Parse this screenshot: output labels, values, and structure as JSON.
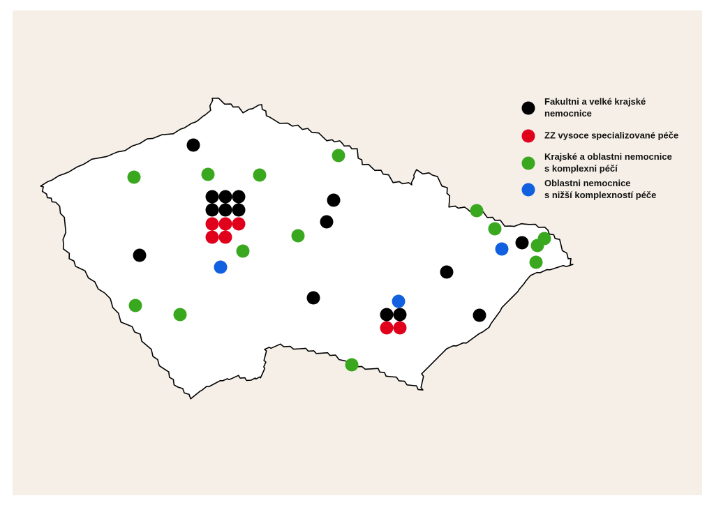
{
  "legend": {
    "items": [
      {
        "lines": [
          "Fakultni a velké krajské",
          "nemocnice"
        ],
        "color": "#000000"
      },
      {
        "lines": [
          "ZZ vysoce specializované péče"
        ],
        "color": "#e0001b"
      },
      {
        "lines": [
          "Krajské a oblastni nemocnice",
          "s komplexni péčí"
        ],
        "color": "#3aa81f"
      },
      {
        "lines": [
          "Oblastni nemocnice",
          "s nižší komplexností péče"
        ],
        "color": "#1060e0"
      }
    ]
  }
}
